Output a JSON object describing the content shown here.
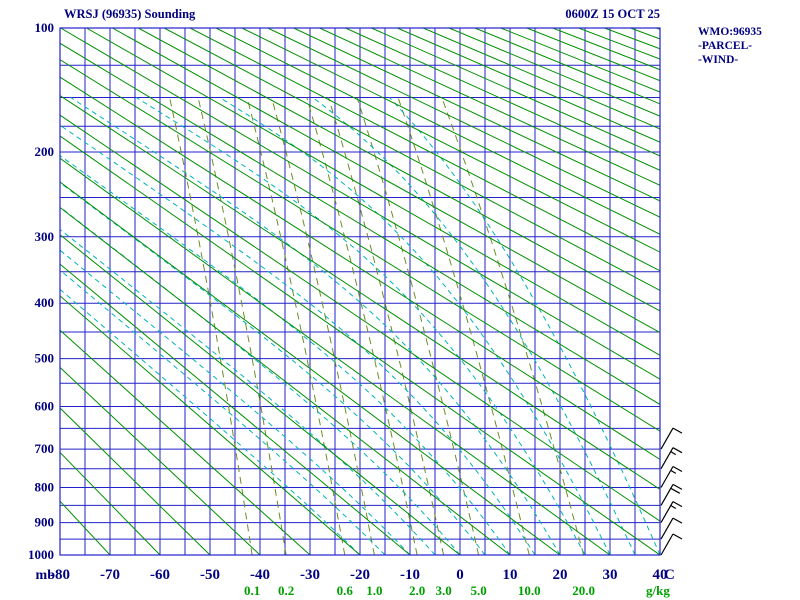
{
  "header": {
    "title": "WRSJ (96935) Sounding",
    "datetime": "0600Z 15 OCT 25"
  },
  "side_legend": {
    "wmo": "WMO:96935",
    "parcel": "-PARCEL-",
    "wind": "-WIND-"
  },
  "chart_data": {
    "type": "line",
    "diagram": "stuve-thermodynamic-sounding",
    "title": "WRSJ (96935) Sounding",
    "pressure_axis": {
      "unit": "mb",
      "scale": "linear-in-p^0.2857",
      "range": [
        100,
        1000
      ],
      "labeled_ticks": [
        100,
        200,
        300,
        400,
        500,
        600,
        700,
        800,
        900,
        1000
      ],
      "gridlines_mb": [
        100,
        125,
        150,
        175,
        200,
        250,
        300,
        350,
        400,
        450,
        500,
        550,
        600,
        650,
        700,
        750,
        800,
        850,
        900,
        950,
        1000
      ]
    },
    "temperature_axis": {
      "unit": "C",
      "range": [
        -80,
        40
      ],
      "labeled_ticks": [
        -80,
        -70,
        -60,
        -50,
        -40,
        -30,
        -20,
        -10,
        0,
        10,
        20,
        30,
        40
      ],
      "gridline_step_c": 5
    },
    "mixing_ratio_lines": {
      "unit": "g/kg",
      "values_g_per_kg": [
        0.1,
        0.2,
        0.6,
        1,
        2,
        3,
        5,
        10,
        20
      ],
      "top_mb": 150,
      "style": "dashed"
    },
    "dry_adiabats": {
      "theta_c_start": -80,
      "theta_c_end": 330,
      "step_c": 10,
      "style": "solid"
    },
    "moist_adiabats": {
      "thetaw_c_start": -20,
      "thetaw_c_end": 40,
      "step_c": 5,
      "top_mb": 150,
      "style": "dashed"
    },
    "wind_barbs": {
      "pressures_mb": [
        700,
        750,
        800,
        850,
        900,
        950,
        1000
      ],
      "speeds_kt": [
        10,
        15,
        15,
        20,
        15,
        10,
        10
      ]
    },
    "colors": {
      "grid": "#2222cc",
      "axis_text": "#000080",
      "dry_adiabat": "#009000",
      "mixing_ratio": "#6b8e23",
      "moist_adiabat": "#00b4b4",
      "mixing_ratio_label": "#00a000",
      "wind_barb": "#000000"
    }
  }
}
